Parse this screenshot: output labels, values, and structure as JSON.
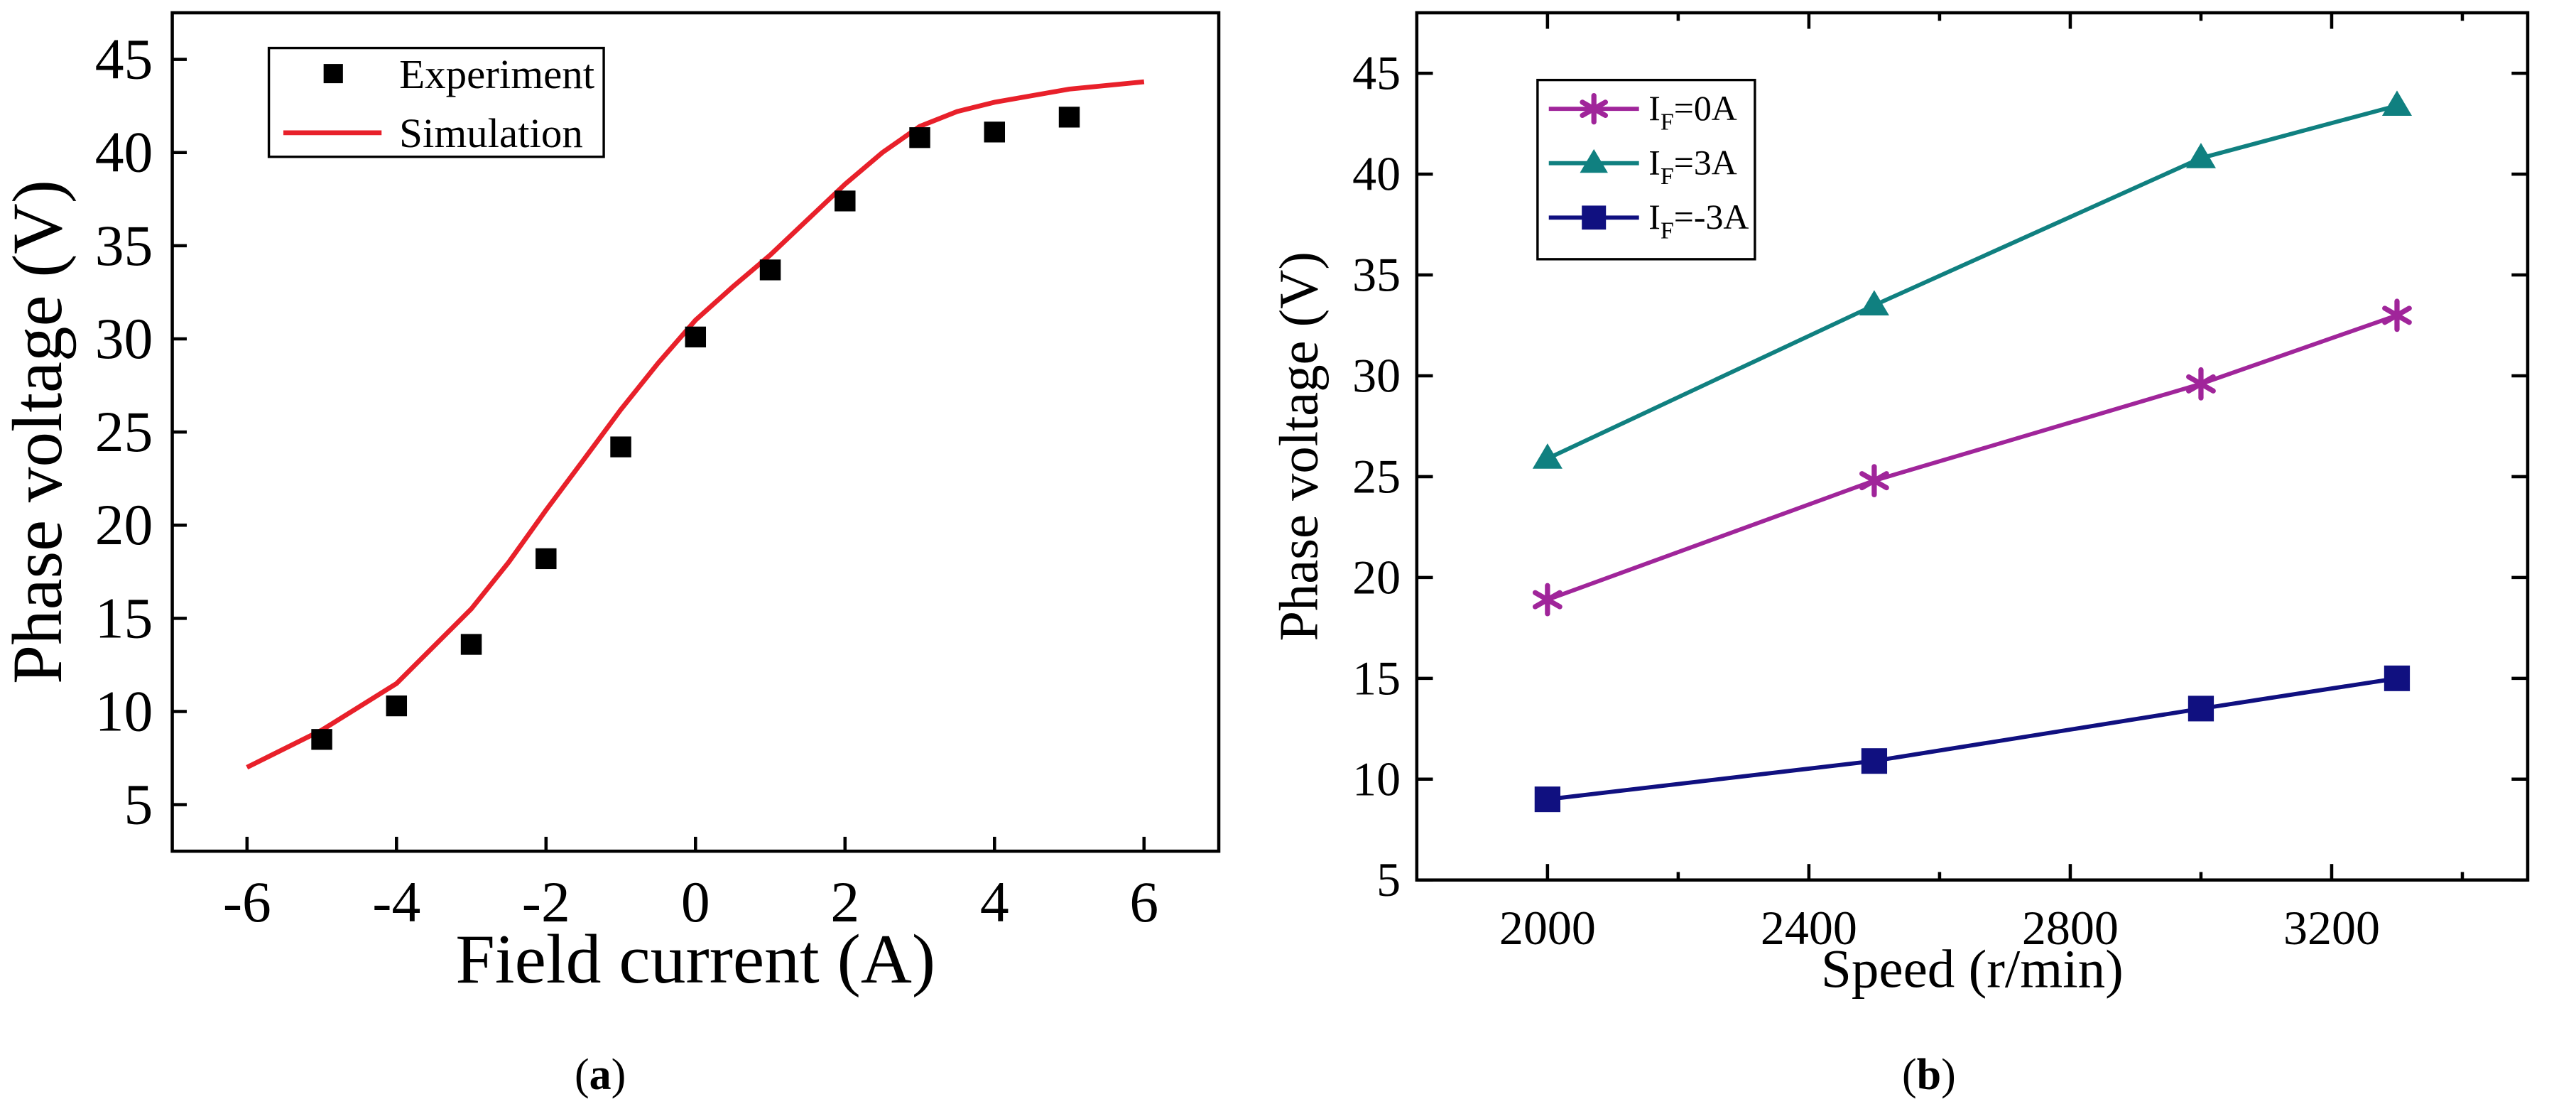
{
  "chart_data": [
    {
      "type": "scatter",
      "panel_label": "a",
      "xlabel": "Field current (A)",
      "ylabel": "Phase voltage (V)",
      "xlim": [
        -7,
        7
      ],
      "ylim": [
        2.5,
        47.5
      ],
      "xticks": [
        -6,
        -4,
        -2,
        0,
        2,
        4,
        6
      ],
      "xtick_labels": [
        "-6",
        "-4",
        "-2",
        "0",
        "2",
        "4",
        "6"
      ],
      "yticks": [
        5,
        10,
        15,
        20,
        25,
        30,
        35,
        40,
        45
      ],
      "ytick_labels": [
        "5",
        "10",
        "15",
        "20",
        "25",
        "30",
        "35",
        "40",
        "45"
      ],
      "legend_position": "top-left",
      "series": [
        {
          "name": "Experiment",
          "kind": "markers",
          "marker": "square",
          "color": "#000000",
          "x": [
            -5,
            -4,
            -3,
            -2,
            -1,
            0,
            1,
            2,
            3,
            4,
            5
          ],
          "y": [
            8.5,
            10.3,
            13.6,
            18.2,
            24.2,
            30.1,
            33.7,
            37.4,
            40.8,
            41.1,
            41.9
          ]
        },
        {
          "name": "Simulation",
          "kind": "line",
          "color": "#e8202a",
          "x": [
            -6,
            -5,
            -4,
            -3,
            -2.5,
            -2,
            -1.5,
            -1,
            -0.5,
            0,
            0.5,
            1,
            1.5,
            2,
            2.5,
            3,
            3.5,
            4,
            5,
            6
          ],
          "y": [
            7.0,
            9.0,
            11.5,
            15.5,
            18.0,
            20.8,
            23.5,
            26.2,
            28.7,
            31.0,
            32.8,
            34.5,
            36.4,
            38.3,
            40.0,
            41.4,
            42.2,
            42.7,
            43.4,
            43.8
          ]
        }
      ]
    },
    {
      "type": "line",
      "panel_label": "b",
      "xlabel": "Speed (r/min)",
      "ylabel": "Phase voltage (V)",
      "xlim": [
        1800,
        3500
      ],
      "ylim": [
        5,
        48
      ],
      "xticks": [
        2000,
        2400,
        2800,
        3200
      ],
      "xtick_labels": [
        "2000",
        "2400",
        "2800",
        "3200"
      ],
      "xminor_ticks": [
        2200,
        2600,
        3000,
        3400
      ],
      "yticks": [
        5,
        10,
        15,
        20,
        25,
        30,
        35,
        40,
        45
      ],
      "ytick_labels": [
        "5",
        "10",
        "15",
        "20",
        "25",
        "30",
        "35",
        "40",
        "45"
      ],
      "legend_position": "top-left",
      "x": [
        2000,
        2500,
        3000,
        3300
      ],
      "series": [
        {
          "name": "I_F=0A",
          "label_main": "I",
          "label_sub": "F",
          "label_rest": "=0A",
          "marker": "asterisk",
          "color": "#a0259a",
          "values": [
            18.9,
            24.8,
            29.6,
            33.0
          ]
        },
        {
          "name": "I_F=3A",
          "label_main": "I",
          "label_sub": "F",
          "label_rest": "=3A",
          "marker": "triangle",
          "color": "#108080",
          "values": [
            25.9,
            33.5,
            40.8,
            43.4
          ]
        },
        {
          "name": "I_F=-3A",
          "label_main": "I",
          "label_sub": "F",
          "label_rest": "=-3A",
          "marker": "square",
          "color": "#101080",
          "values": [
            9.0,
            10.9,
            13.5,
            15.0
          ]
        }
      ]
    }
  ]
}
